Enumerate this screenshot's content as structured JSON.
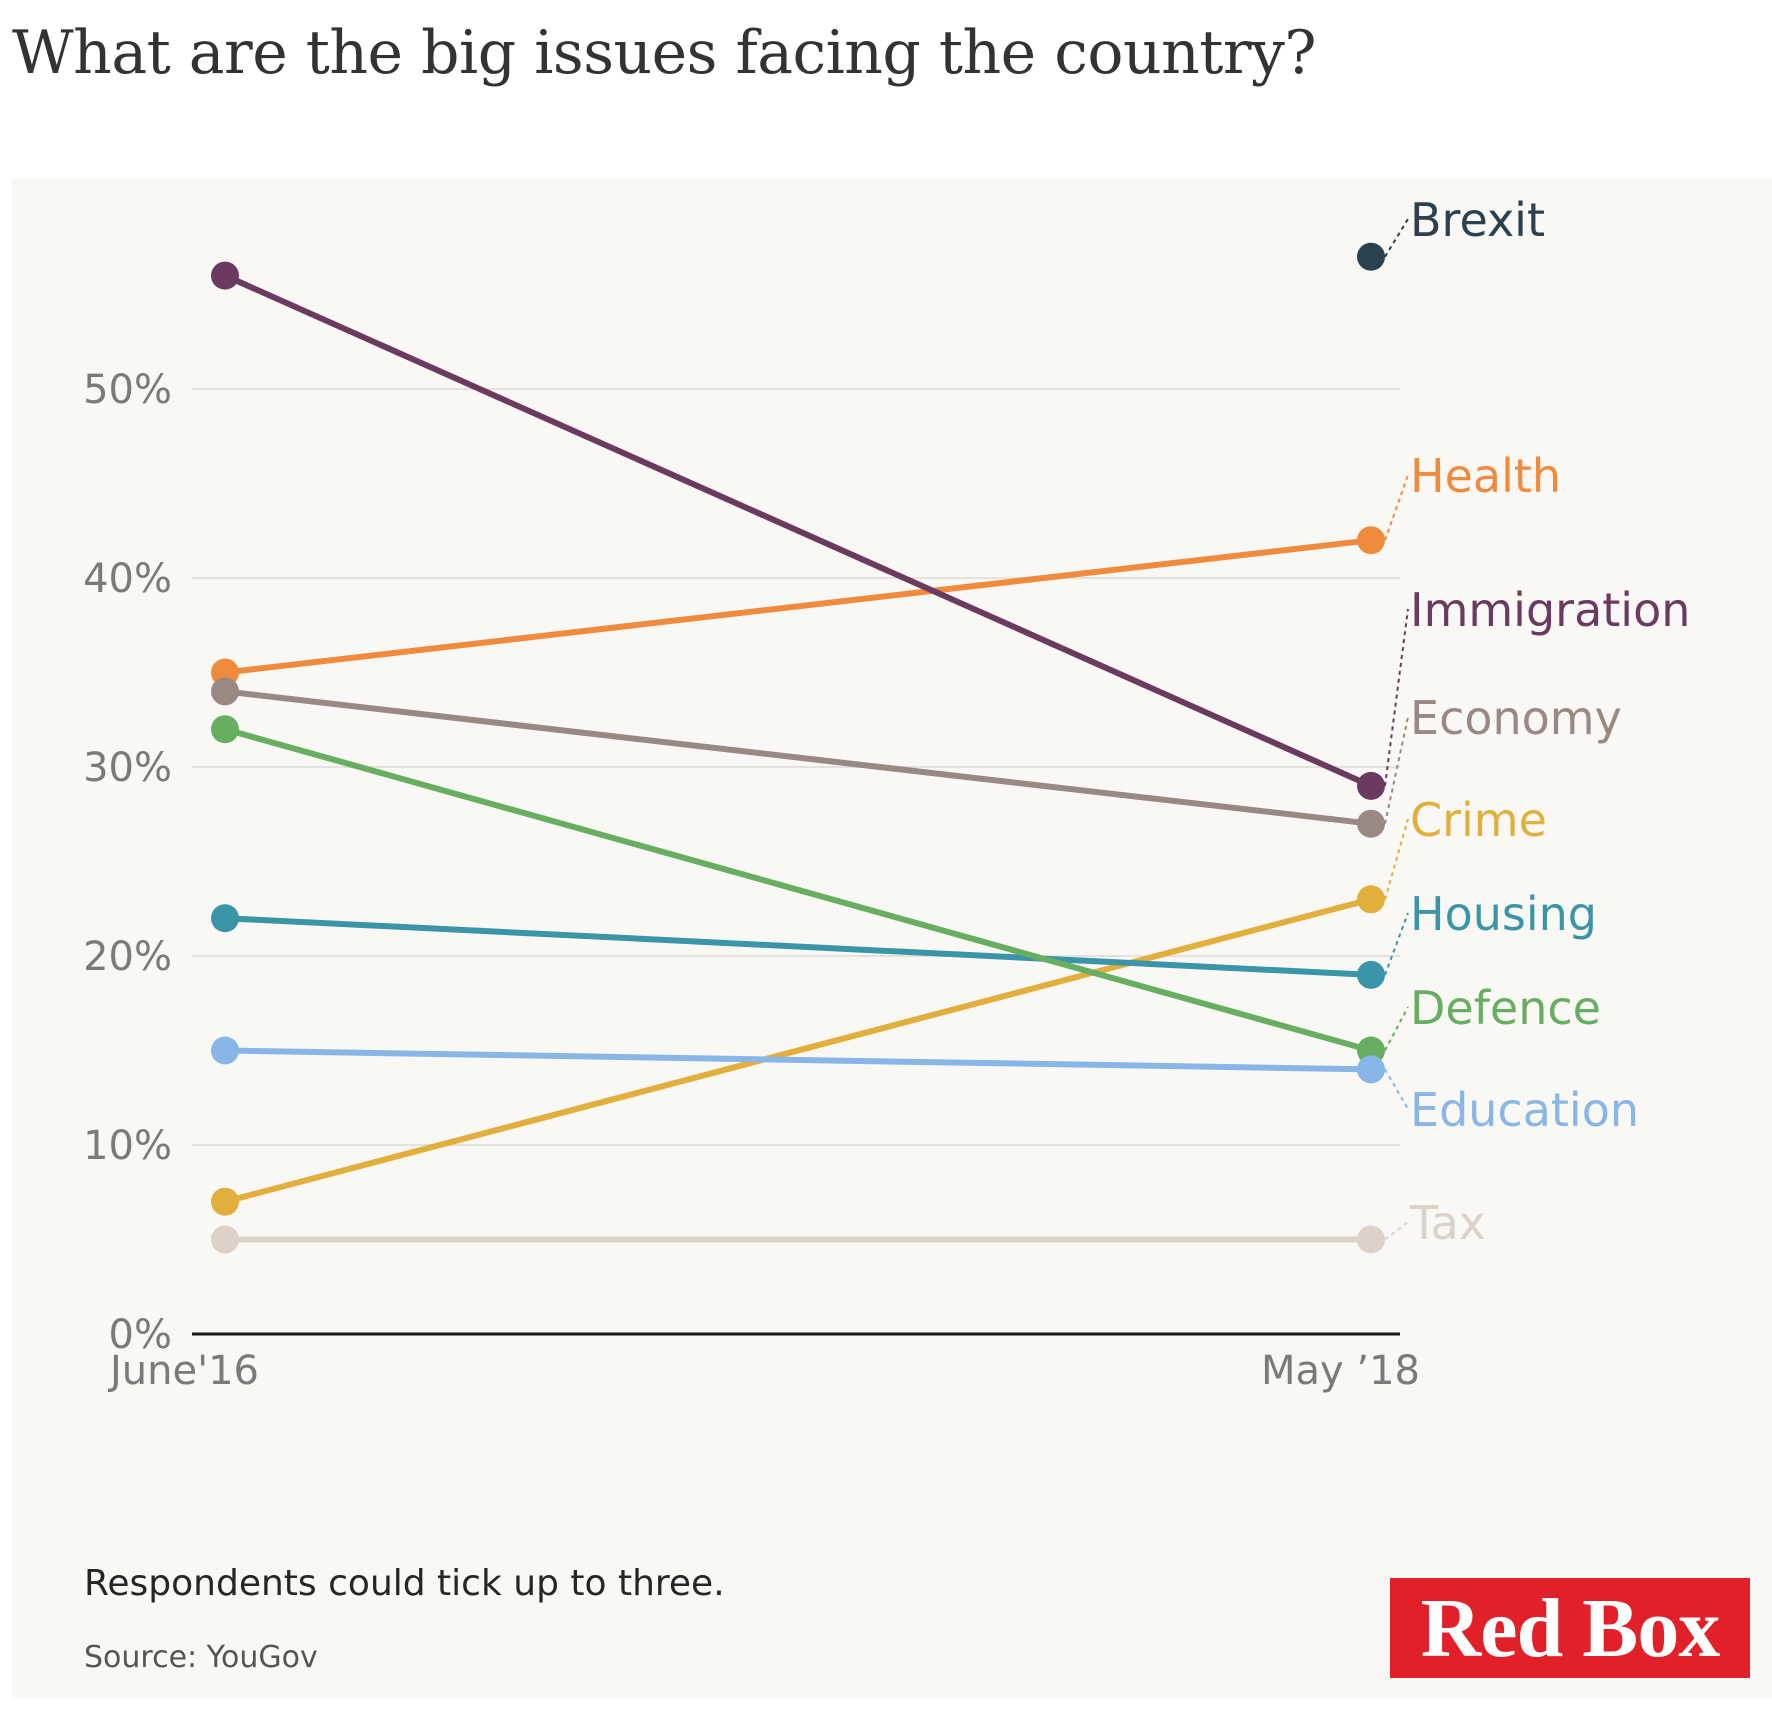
{
  "title": "What are the big issues facing the country?",
  "note": "Respondents could tick up to three.",
  "source": "Source: YouGov",
  "logo_text": "Red Box",
  "chart_data": {
    "type": "line",
    "title": "What are the big issues facing the country?",
    "x": [
      "June'16",
      "May ’18"
    ],
    "y_ticks": [
      "0%",
      "10%",
      "20%",
      "30%",
      "40%",
      "50%"
    ],
    "y_tick_values": [
      0,
      10,
      20,
      30,
      40,
      50
    ],
    "ylim": [
      0,
      58
    ],
    "grid": true,
    "legend": "direct labels at right end of lines",
    "series": [
      {
        "name": "Brexit",
        "color": "#2b4150",
        "values": [
          null,
          57
        ]
      },
      {
        "name": "Health",
        "color": "#f08a3c",
        "values": [
          35,
          42
        ]
      },
      {
        "name": "Immigration",
        "color": "#6a3a60",
        "values": [
          56,
          29
        ]
      },
      {
        "name": "Economy",
        "color": "#9a8882",
        "values": [
          34,
          27
        ]
      },
      {
        "name": "Crime",
        "color": "#e2ae3c",
        "values": [
          7,
          23
        ]
      },
      {
        "name": "Housing",
        "color": "#3a95a8",
        "values": [
          22,
          19
        ]
      },
      {
        "name": "Defence",
        "color": "#68ae60",
        "values": [
          32,
          15
        ]
      },
      {
        "name": "Education",
        "color": "#88b6e6",
        "values": [
          15,
          14
        ]
      },
      {
        "name": "Tax",
        "color": "#dcd2c8",
        "values": [
          5,
          5
        ]
      }
    ]
  }
}
